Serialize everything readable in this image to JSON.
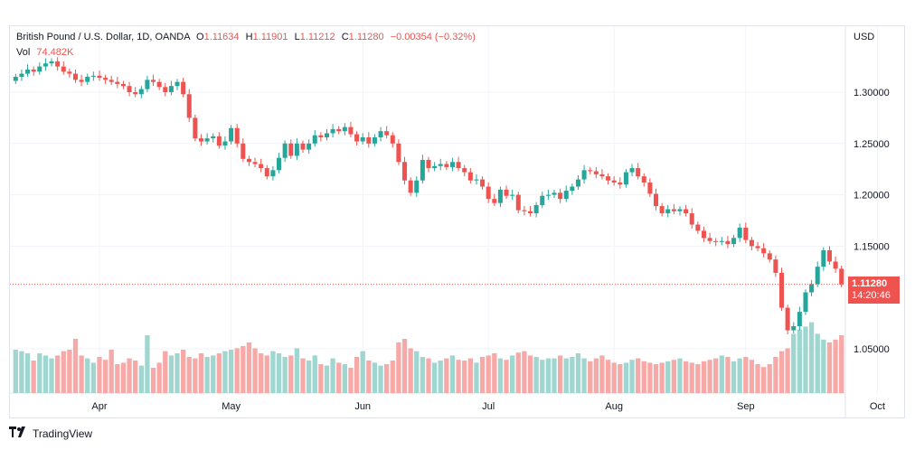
{
  "legend": {
    "symbol": "British Pound / U.S. Dollar, 1D, OANDA",
    "o_label": "O",
    "o_value": "1.11634",
    "h_label": "H",
    "h_value": "1.11901",
    "l_label": "L",
    "l_value": "1.11212",
    "c_label": "C",
    "c_value": "1.11280",
    "change": "−0.00354 (−0.32%)",
    "vol_label": "Vol",
    "vol_value": "74.482K"
  },
  "price_axis": {
    "currency": "USD",
    "ticks": [
      "1.30000",
      "1.25000",
      "1.20000",
      "1.15000",
      "1.05000"
    ]
  },
  "last_price": {
    "value": "1.11280",
    "countdown": "14:20:46"
  },
  "time_axis": {
    "ticks": [
      "Apr",
      "May",
      "Jun",
      "Jul",
      "Aug",
      "Sep",
      "Oct"
    ]
  },
  "footer": {
    "brand": "TradingView"
  },
  "colors": {
    "up": "#26a69a",
    "down": "#ef5350",
    "vol_up": "#9fd6d0",
    "vol_down": "#f7a9a7",
    "grid": "#f0f3fa"
  },
  "chart_data": {
    "type": "candlestick",
    "y_range": [
      1.02,
      1.33
    ],
    "tick_values": [
      1.3,
      1.25,
      1.2,
      1.15,
      1.05
    ],
    "month_index": {
      "Apr": 14,
      "May": 36,
      "Jun": 58,
      "Jul": 79,
      "Aug": 100,
      "Sep": 122,
      "Oct": 144
    },
    "closes": [
      1.315,
      1.318,
      1.322,
      1.32,
      1.325,
      1.328,
      1.33,
      1.325,
      1.32,
      1.318,
      1.312,
      1.31,
      1.315,
      1.316,
      1.314,
      1.312,
      1.31,
      1.308,
      1.306,
      1.3,
      1.298,
      1.303,
      1.312,
      1.31,
      1.305,
      1.3,
      1.306,
      1.31,
      1.298,
      1.275,
      1.255,
      1.252,
      1.255,
      1.257,
      1.248,
      1.252,
      1.265,
      1.25,
      1.235,
      1.232,
      1.23,
      1.226,
      1.218,
      1.224,
      1.236,
      1.25,
      1.238,
      1.25,
      1.244,
      1.25,
      1.258,
      1.256,
      1.26,
      1.264,
      1.262,
      1.266,
      1.259,
      1.252,
      1.256,
      1.25,
      1.256,
      1.262,
      1.258,
      1.25,
      1.232,
      1.214,
      1.202,
      1.214,
      1.234,
      1.226,
      1.228,
      1.23,
      1.227,
      1.232,
      1.226,
      1.222,
      1.214,
      1.215,
      1.208,
      1.196,
      1.192,
      1.205,
      1.199,
      1.2,
      1.185,
      1.184,
      1.182,
      1.19,
      1.199,
      1.2,
      1.202,
      1.196,
      1.204,
      1.208,
      1.215,
      1.224,
      1.223,
      1.22,
      1.218,
      1.214,
      1.212,
      1.21,
      1.222,
      1.226,
      1.218,
      1.212,
      1.201,
      1.189,
      1.182,
      1.186,
      1.184,
      1.186,
      1.182,
      1.171,
      1.165,
      1.158,
      1.155,
      1.154,
      1.155,
      1.152,
      1.158,
      1.168,
      1.156,
      1.15,
      1.148,
      1.143,
      1.137,
      1.124,
      1.09,
      1.068,
      1.072,
      1.086,
      1.105,
      1.113,
      1.13,
      1.146,
      1.135,
      1.128,
      1.1128
    ],
    "volumes": [
      60,
      58,
      55,
      45,
      55,
      52,
      48,
      52,
      58,
      60,
      75,
      52,
      48,
      42,
      50,
      46,
      60,
      40,
      42,
      48,
      45,
      38,
      80,
      35,
      42,
      58,
      52,
      55,
      60,
      50,
      48,
      55,
      50,
      52,
      55,
      58,
      60,
      62,
      65,
      70,
      62,
      55,
      52,
      58,
      55,
      50,
      52,
      62,
      48,
      45,
      52,
      40,
      38,
      48,
      42,
      40,
      35,
      50,
      58,
      45,
      42,
      38,
      40,
      45,
      70,
      75,
      62,
      58,
      50,
      48,
      42,
      45,
      48,
      52,
      46,
      45,
      48,
      42,
      50,
      52,
      55,
      48,
      46,
      52,
      56,
      58,
      52,
      50,
      46,
      48,
      48,
      52,
      48,
      50,
      55,
      48,
      44,
      48,
      52,
      46,
      42,
      40,
      42,
      46,
      48,
      44,
      42,
      40,
      42,
      44,
      46,
      48,
      44,
      42,
      40,
      44,
      46,
      48,
      52,
      50,
      44,
      48,
      50,
      46,
      40,
      36,
      40,
      50,
      58,
      62,
      82,
      88,
      92,
      98,
      82,
      74,
      70,
      74,
      80
    ],
    "volume_scale_max": 100
  }
}
